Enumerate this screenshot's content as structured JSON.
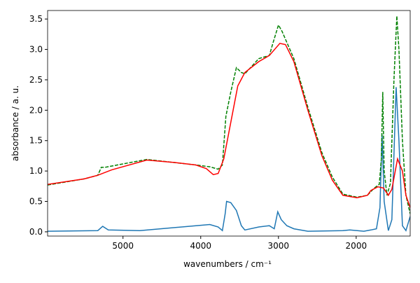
{
  "chart_data": {
    "type": "line",
    "xlabel": "wavenumbers / cm⁻¹",
    "ylabel": "absorbance / a. u.",
    "xlim": [
      5970,
      1305
    ],
    "ylim": [
      -0.07,
      3.64
    ],
    "xticks": [
      5000,
      4000,
      3000,
      2000
    ],
    "yticks": [
      {
        "value": 0,
        "label": "0.0"
      },
      0.5,
      {
        "value": 1,
        "label": "1.0"
      },
      1.5,
      {
        "value": 2,
        "label": "2.0"
      },
      2.5,
      {
        "value": 3,
        "label": "3.0"
      },
      3.5
    ],
    "series": [
      {
        "color": "#1f77b4",
        "dash": false,
        "x": [
          5970,
          5324,
          5261,
          5189,
          4784,
          4063,
          3883,
          3775,
          3721,
          3685,
          3667,
          3613,
          3541,
          3477,
          3432,
          3252,
          3117,
          3054,
          3009,
          2964,
          2892,
          2802,
          2622,
          2171,
          2081,
          1901,
          1811,
          1739,
          1694,
          1667,
          1640,
          1586,
          1541,
          1486,
          1450,
          1405,
          1360,
          1306
        ],
        "values": [
          0.01,
          0.02,
          0.09,
          0.03,
          0.02,
          0.1,
          0.12,
          0.08,
          0.02,
          0.3,
          0.5,
          0.48,
          0.35,
          0.1,
          0.03,
          0.08,
          0.1,
          0.05,
          0.33,
          0.2,
          0.1,
          0.05,
          0.01,
          0.02,
          0.03,
          0.01,
          0.03,
          0.05,
          0.4,
          1.6,
          0.5,
          0.02,
          0.2,
          2.38,
          1.5,
          0.1,
          0.02,
          0.25
        ]
      },
      {
        "color": "#008000",
        "dash": true,
        "x": [
          5970,
          5500,
          5324,
          5279,
          5234,
          4694,
          4063,
          3883,
          3775,
          3721,
          3676,
          3613,
          3541,
          3477,
          3432,
          3252,
          3117,
          3072,
          3000,
          2955,
          2802,
          2622,
          2441,
          2306,
          2171,
          1991,
          1856,
          1766,
          1703,
          1676,
          1658,
          1640,
          1604,
          1559,
          1514,
          1477,
          1450,
          1405,
          1360,
          1306
        ],
        "values": [
          0.77,
          0.87,
          0.93,
          1.06,
          1.06,
          1.19,
          1.1,
          1.07,
          1.03,
          1.1,
          1.9,
          2.3,
          2.7,
          2.62,
          2.6,
          2.85,
          2.9,
          3.1,
          3.4,
          3.3,
          2.85,
          2.05,
          1.3,
          0.9,
          0.62,
          0.57,
          0.6,
          0.72,
          0.78,
          1.2,
          2.3,
          1.0,
          0.6,
          0.8,
          2.5,
          3.55,
          3.0,
          1.5,
          0.6,
          0.3
        ]
      },
      {
        "color": "#ff0000",
        "dash": false,
        "x": [
          5970,
          5500,
          5324,
          5144,
          4694,
          4333,
          4063,
          3928,
          3838,
          3775,
          3703,
          3613,
          3523,
          3432,
          3252,
          3117,
          2982,
          2910,
          2802,
          2622,
          2441,
          2306,
          2171,
          1991,
          1856,
          1811,
          1721,
          1649,
          1586,
          1541,
          1468,
          1405,
          1360,
          1306
        ],
        "values": [
          0.78,
          0.87,
          0.93,
          1.02,
          1.18,
          1.14,
          1.1,
          1.04,
          0.94,
          0.96,
          1.2,
          1.8,
          2.4,
          2.62,
          2.8,
          2.9,
          3.1,
          3.08,
          2.8,
          2.0,
          1.25,
          0.85,
          0.6,
          0.56,
          0.6,
          0.68,
          0.74,
          0.72,
          0.6,
          0.7,
          1.2,
          1.0,
          0.6,
          0.4
        ]
      }
    ]
  }
}
